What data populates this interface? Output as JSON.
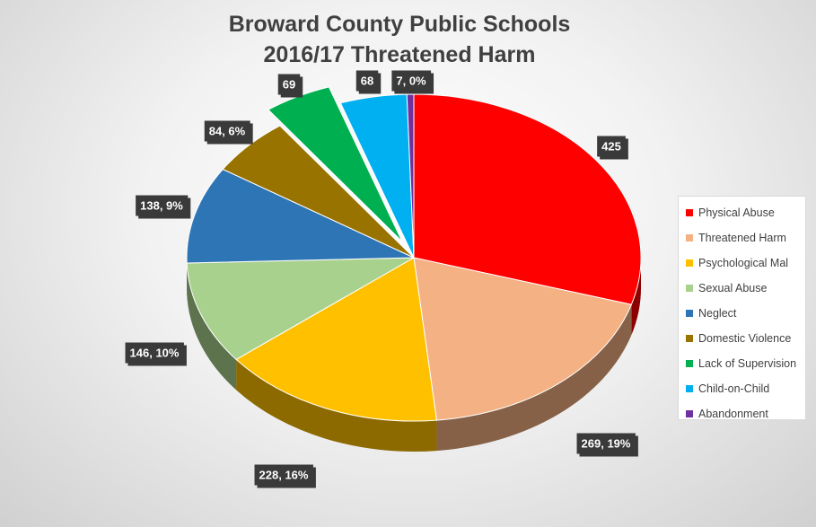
{
  "chart_data": {
    "type": "pie",
    "title": [
      "Broward County Public Schools",
      "2016/17 Threatened Harm"
    ],
    "categories": [
      "Physical Abuse",
      "Threatened Harm",
      "Psychological Mal",
      "Sexual Abuse",
      "Neglect",
      "Domestic Violence",
      "Lack of Supervision",
      "Child-on-Child",
      "Abandonment"
    ],
    "values": [
      425,
      269,
      228,
      146,
      138,
      84,
      69,
      68,
      7
    ],
    "data_labels": [
      "425",
      "269, 19%",
      "228, 16%",
      "146, 10%",
      "138, 9%",
      "84, 6%",
      "69",
      "68",
      "7, 0%"
    ],
    "colors": [
      "#ff0000",
      "#f4b183",
      "#ffc000",
      "#a9d18e",
      "#2e75b6",
      "#997300",
      "#00b050",
      "#00b0f0",
      "#7030a0"
    ],
    "exploded": [
      "Lack of Supervision"
    ],
    "style": "3d-pie",
    "legend_position": "right"
  }
}
